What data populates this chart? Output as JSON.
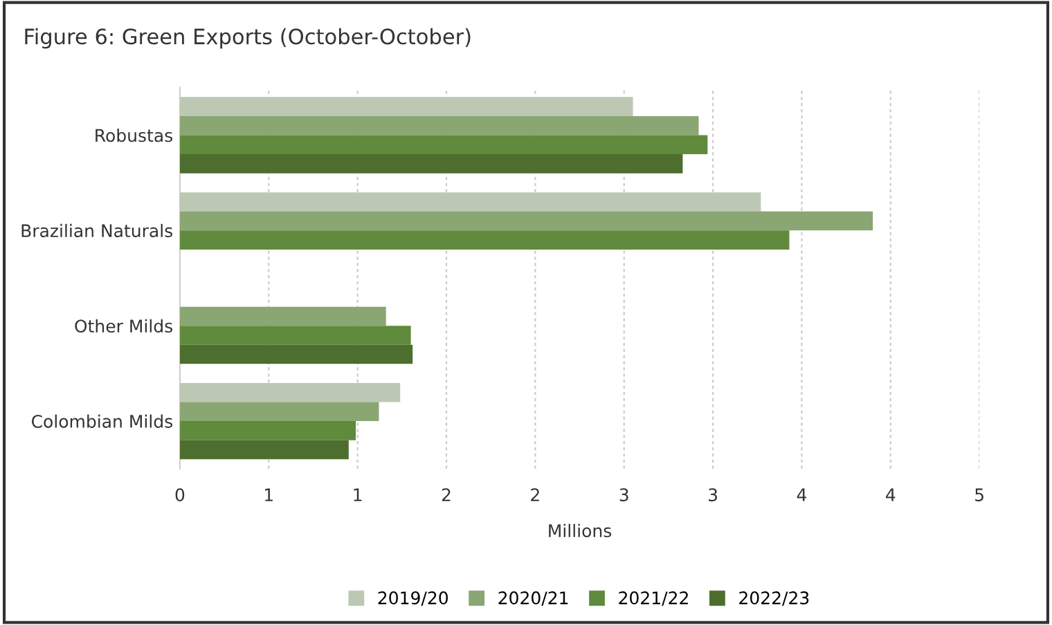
{
  "chart_data": {
    "type": "bar",
    "orientation": "horizontal",
    "title": "Figure 6: Green Exports (October-October)",
    "xlabel": "Millions",
    "categories": [
      "Robustas",
      "Brazilian Naturals",
      "Other Milds",
      "Colombian Milds"
    ],
    "series": [
      {
        "name": "2019/20",
        "color": "#bcc8b4",
        "values": [
          2.55,
          3.27,
          null,
          1.24
        ]
      },
      {
        "name": "2020/21",
        "color": "#8aa672",
        "values": [
          2.92,
          3.9,
          1.16,
          1.12
        ]
      },
      {
        "name": "2021/22",
        "color": "#608a3c",
        "values": [
          2.97,
          3.43,
          1.3,
          0.99
        ]
      },
      {
        "name": "2022/23",
        "color": "#4d6e2e",
        "values": [
          2.83,
          null,
          1.31,
          0.95
        ]
      }
    ],
    "xlim": [
      0,
      4.5
    ],
    "xticks": [
      0,
      {
        "value": 0.5,
        "label": "1"
      },
      1,
      {
        "value": 1.5,
        "label": "2"
      },
      2,
      {
        "value": 2.5,
        "label": "3"
      },
      3,
      {
        "value": 3.5,
        "label": "4"
      },
      4,
      {
        "value": 4.5,
        "label": "5"
      }
    ],
    "grid": "x",
    "legend": "bottom"
  }
}
